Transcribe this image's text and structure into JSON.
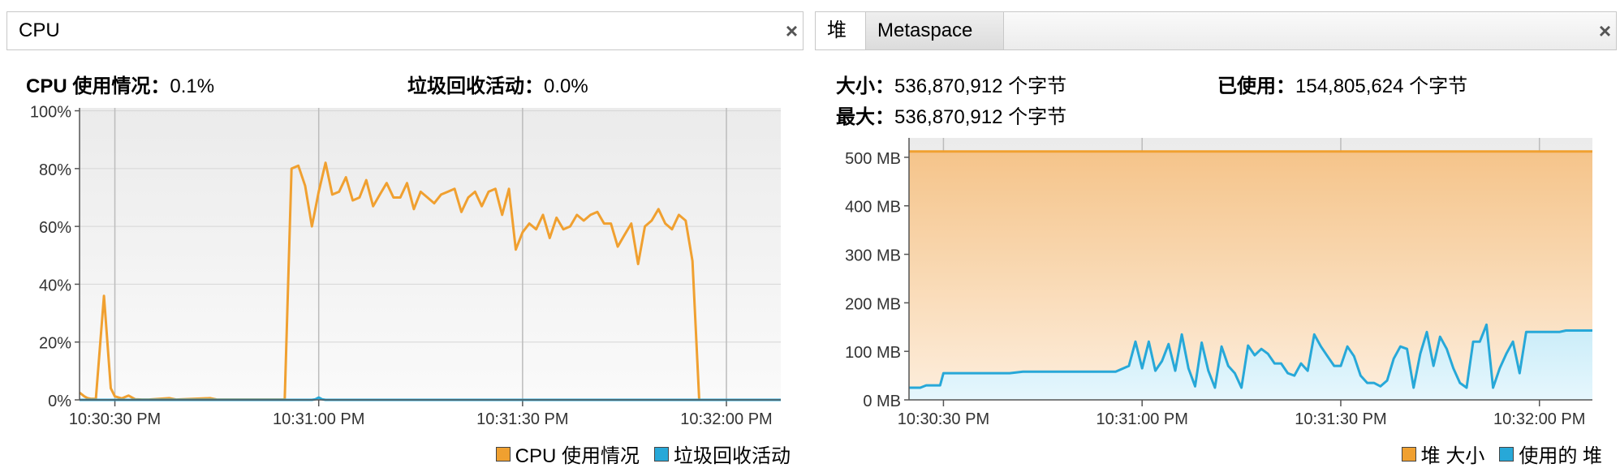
{
  "cpu_panel": {
    "tab_label": "CPU",
    "close_glyph": "×",
    "stats": {
      "cpu_usage_key": "CPU 使用情况：",
      "cpu_usage_val": "0.1%",
      "gc_key": "垃圾回收活动：",
      "gc_val": "0.0%"
    }
  },
  "heap_panel": {
    "tabs": [
      {
        "label": "堆"
      },
      {
        "label": "Metaspace"
      }
    ],
    "close_glyph": "×",
    "stats": {
      "size_key": "大小：",
      "size_val": "536,870,912 个字节",
      "used_key": "已使用：",
      "used_val": "154,805,624 个字节",
      "max_key": "最大：",
      "max_val": "536,870,912 个字节"
    }
  },
  "colors": {
    "orange": "#f0a030",
    "blue": "#27a8d8",
    "grid": "#bcbcbc"
  },
  "chart_data": [
    {
      "type": "line",
      "title": "",
      "xlabel": "",
      "ylabel": "",
      "x_ticks": [
        "10:30:30 PM",
        "10:31:00 PM",
        "10:31:30 PM",
        "10:32:00 PM"
      ],
      "x_tick_values": [
        0,
        30,
        60,
        90
      ],
      "xlim": [
        -5.2,
        98
      ],
      "y_ticks": [
        "0%",
        "20%",
        "40%",
        "60%",
        "80%",
        "100%"
      ],
      "y_tick_values": [
        0,
        20,
        40,
        60,
        80,
        100
      ],
      "ylim": [
        0,
        101
      ],
      "grid": true,
      "legend_position": "bottom-right",
      "series": [
        {
          "name": "CPU 使用情况",
          "color": "#f0a030",
          "x": [
            -5.2,
            -4.5,
            -4,
            -3.6,
            -2.8,
            -1.6,
            -0.6,
            0,
            1,
            2,
            3,
            4,
            5,
            8,
            9,
            14,
            15,
            20,
            22,
            25,
            26,
            27,
            28,
            29,
            30,
            31,
            32,
            33,
            34,
            35,
            36,
            37,
            38,
            39,
            40,
            41,
            42,
            43,
            44,
            45,
            46,
            47,
            48,
            49,
            50,
            51,
            52,
            53,
            54,
            55,
            56,
            57,
            58,
            59,
            60,
            61,
            62,
            63,
            64,
            65,
            66,
            67,
            68,
            69,
            70,
            71,
            72,
            73,
            74,
            75,
            76,
            77,
            78,
            79,
            80,
            81,
            82,
            83,
            84,
            85,
            86,
            87,
            88,
            89
          ],
          "y": [
            2.5,
            1.2,
            0.6,
            0.4,
            0.3,
            36,
            4,
            1.2,
            0.5,
            1.5,
            0.2,
            0.1,
            0.1,
            0.6,
            0.1,
            0.6,
            0.1,
            0.1,
            0.1,
            0.1,
            80,
            81,
            74,
            60,
            72,
            82,
            71,
            72,
            77,
            69,
            70,
            76,
            67,
            71,
            75,
            70,
            70,
            75,
            66,
            72,
            70,
            68,
            71,
            72,
            73,
            65,
            70,
            72,
            67,
            72,
            73,
            64,
            73,
            52,
            58,
            61,
            59,
            64,
            56,
            63,
            59,
            60,
            64,
            62,
            64,
            65,
            61,
            61,
            53,
            57,
            61,
            47,
            60,
            62,
            66,
            61,
            59,
            64,
            62,
            48,
            0,
            0,
            0,
            0
          ]
        },
        {
          "name": "垃圾回收活动",
          "color": "#27a8d8",
          "x": [
            -5.2,
            29,
            29.5,
            30,
            30.5,
            31,
            98
          ],
          "y": [
            0,
            0,
            0.2,
            0.8,
            0.2,
            0,
            0
          ]
        }
      ]
    },
    {
      "type": "area",
      "title": "",
      "xlabel": "",
      "ylabel": "",
      "x_ticks": [
        "10:30:30 PM",
        "10:31:00 PM",
        "10:31:30 PM",
        "10:32:00 PM"
      ],
      "x_tick_values": [
        0,
        30,
        60,
        90
      ],
      "xlim": [
        -5.2,
        98
      ],
      "y_ticks": [
        "0 MB",
        "100 MB",
        "200 MB",
        "300 MB",
        "400 MB",
        "500 MB"
      ],
      "y_tick_values": [
        0,
        100,
        200,
        300,
        400,
        500
      ],
      "ylim": [
        0,
        540
      ],
      "grid": true,
      "legend_position": "bottom-right",
      "series": [
        {
          "name": "堆 大小",
          "color": "#f0a030",
          "x": [
            -5.2,
            98
          ],
          "y": [
            512,
            512
          ]
        },
        {
          "name": "使用的 堆",
          "color": "#27a8d8",
          "x": [
            -5.2,
            -3.5,
            -2.6,
            -0.5,
            0,
            1,
            10,
            12,
            17,
            26,
            28,
            29,
            30,
            31,
            32,
            33,
            34,
            35,
            36,
            37,
            38,
            39,
            40,
            41,
            42,
            43,
            44,
            45,
            46,
            47,
            48,
            49,
            50,
            51,
            52,
            53,
            54,
            55,
            56,
            57,
            58,
            59,
            60,
            61,
            62,
            63,
            64,
            65,
            66,
            67,
            68,
            69,
            70,
            71,
            72,
            73,
            74,
            75,
            76,
            77,
            78,
            79,
            80,
            81,
            82,
            83,
            84,
            85,
            86,
            87,
            88,
            89,
            90,
            92,
            93,
            94,
            95,
            96,
            98
          ],
          "y": [
            25,
            25,
            30,
            30,
            55,
            55,
            55,
            58,
            58,
            58,
            70,
            120,
            65,
            120,
            60,
            80,
            115,
            60,
            135,
            65,
            28,
            118,
            60,
            25,
            110,
            70,
            55,
            25,
            112,
            92,
            105,
            95,
            75,
            75,
            55,
            50,
            75,
            60,
            135,
            110,
            90,
            70,
            70,
            110,
            90,
            50,
            35,
            35,
            28,
            40,
            85,
            110,
            105,
            25,
            95,
            140,
            70,
            130,
            105,
            65,
            35,
            25,
            120,
            120,
            155,
            25,
            65,
            95,
            120,
            55,
            140,
            140,
            140,
            140,
            140,
            143,
            143,
            143,
            143
          ]
        }
      ]
    }
  ],
  "legends": {
    "cpu": [
      "CPU 使用情况",
      "垃圾回收活动"
    ],
    "heap": [
      "堆 大小",
      "使用的 堆"
    ]
  }
}
